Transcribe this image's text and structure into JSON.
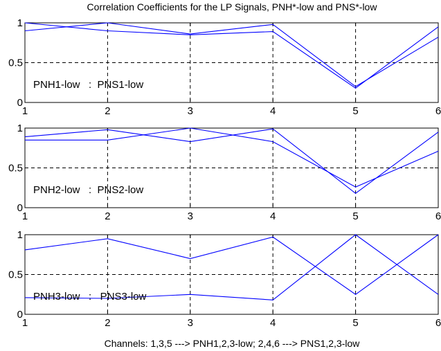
{
  "chart_data": {
    "type": "line",
    "title": "Correlation Coefficients for the LP Signals, PNH*-low and PNS*-low",
    "xlabel": "Channels: 1,3,5 ---> PNH1,2,3-low; 2,4,6 ---> PNS1,2,3-low",
    "line_color": "#0000ff",
    "grid": true,
    "panels": [
      {
        "label": "PNH1-low   :  PNS1-low",
        "x": [
          1,
          2,
          3,
          4,
          5,
          6
        ],
        "xlim": [
          1,
          6
        ],
        "ylim": [
          0,
          1
        ],
        "xticks": [
          "1",
          "2",
          "3",
          "4",
          "5",
          "6"
        ],
        "yticks": [
          "0",
          "0.5",
          "1"
        ],
        "series": [
          {
            "values": [
              1.0,
              0.9,
              0.85,
              0.89,
              0.18,
              0.95
            ]
          },
          {
            "values": [
              0.9,
              1.0,
              0.86,
              0.98,
              0.2,
              0.82
            ]
          }
        ]
      },
      {
        "label": "PNH2-low   :  PNS2-low",
        "x": [
          1,
          2,
          3,
          4,
          5,
          6
        ],
        "xlim": [
          1,
          6
        ],
        "ylim": [
          0,
          1
        ],
        "xticks": [
          "1",
          "2",
          "3",
          "4",
          "5",
          "6"
        ],
        "yticks": [
          "0",
          "0.5",
          "1"
        ],
        "series": [
          {
            "values": [
              0.89,
              0.98,
              0.83,
              0.99,
              0.18,
              0.95
            ]
          },
          {
            "values": [
              0.85,
              0.85,
              1.0,
              0.83,
              0.26,
              0.71
            ]
          }
        ]
      },
      {
        "label": "PNH3-low   :   PNS3-low",
        "x": [
          1,
          2,
          3,
          4,
          5,
          6
        ],
        "xlim": [
          1,
          6
        ],
        "ylim": [
          0,
          1
        ],
        "xticks": [
          "1",
          "2",
          "3",
          "4",
          "5",
          "6"
        ],
        "yticks": [
          "0",
          "0.5",
          "1"
        ],
        "series": [
          {
            "values": [
              0.81,
              0.95,
              0.7,
              0.97,
              0.25,
              1.0
            ]
          },
          {
            "values": [
              0.21,
              0.2,
              0.25,
              0.18,
              1.0,
              0.25
            ]
          }
        ]
      }
    ]
  }
}
